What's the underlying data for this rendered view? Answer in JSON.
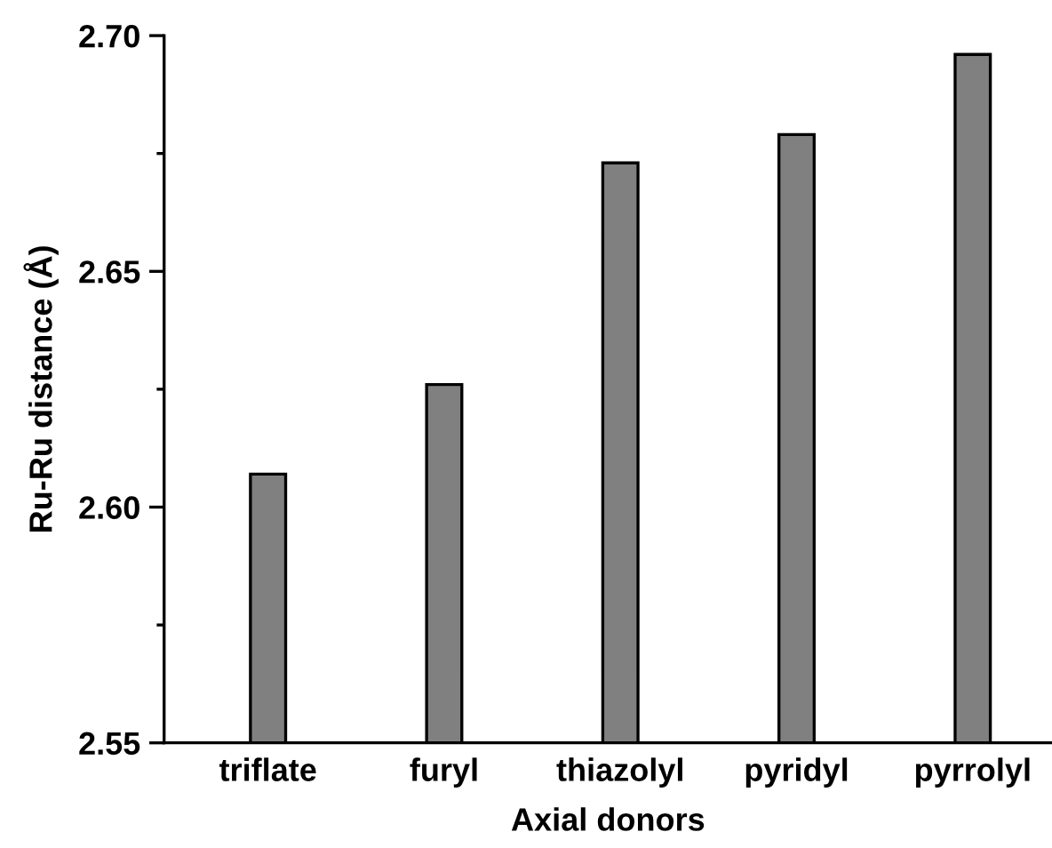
{
  "chart_data": {
    "type": "bar",
    "xlabel": "Axial donors",
    "ylabel": "Ru-Ru distance (Å)",
    "categories": [
      "triflate",
      "furyl",
      "thiazolyl",
      "pyridyl",
      "pyrrolyl"
    ],
    "values": [
      2.607,
      2.626,
      2.673,
      2.679,
      2.696
    ],
    "color": "#808080",
    "ylim": [
      2.55,
      2.7
    ],
    "yticks": [
      2.55,
      {
        "value": 2.575,
        "label": null
      },
      "2.60",
      {
        "value": 2.625,
        "label": null
      },
      2.65,
      {
        "value": 2.675,
        "label": null
      },
      "2.70"
    ],
    "grid": false,
    "legend": false
  }
}
